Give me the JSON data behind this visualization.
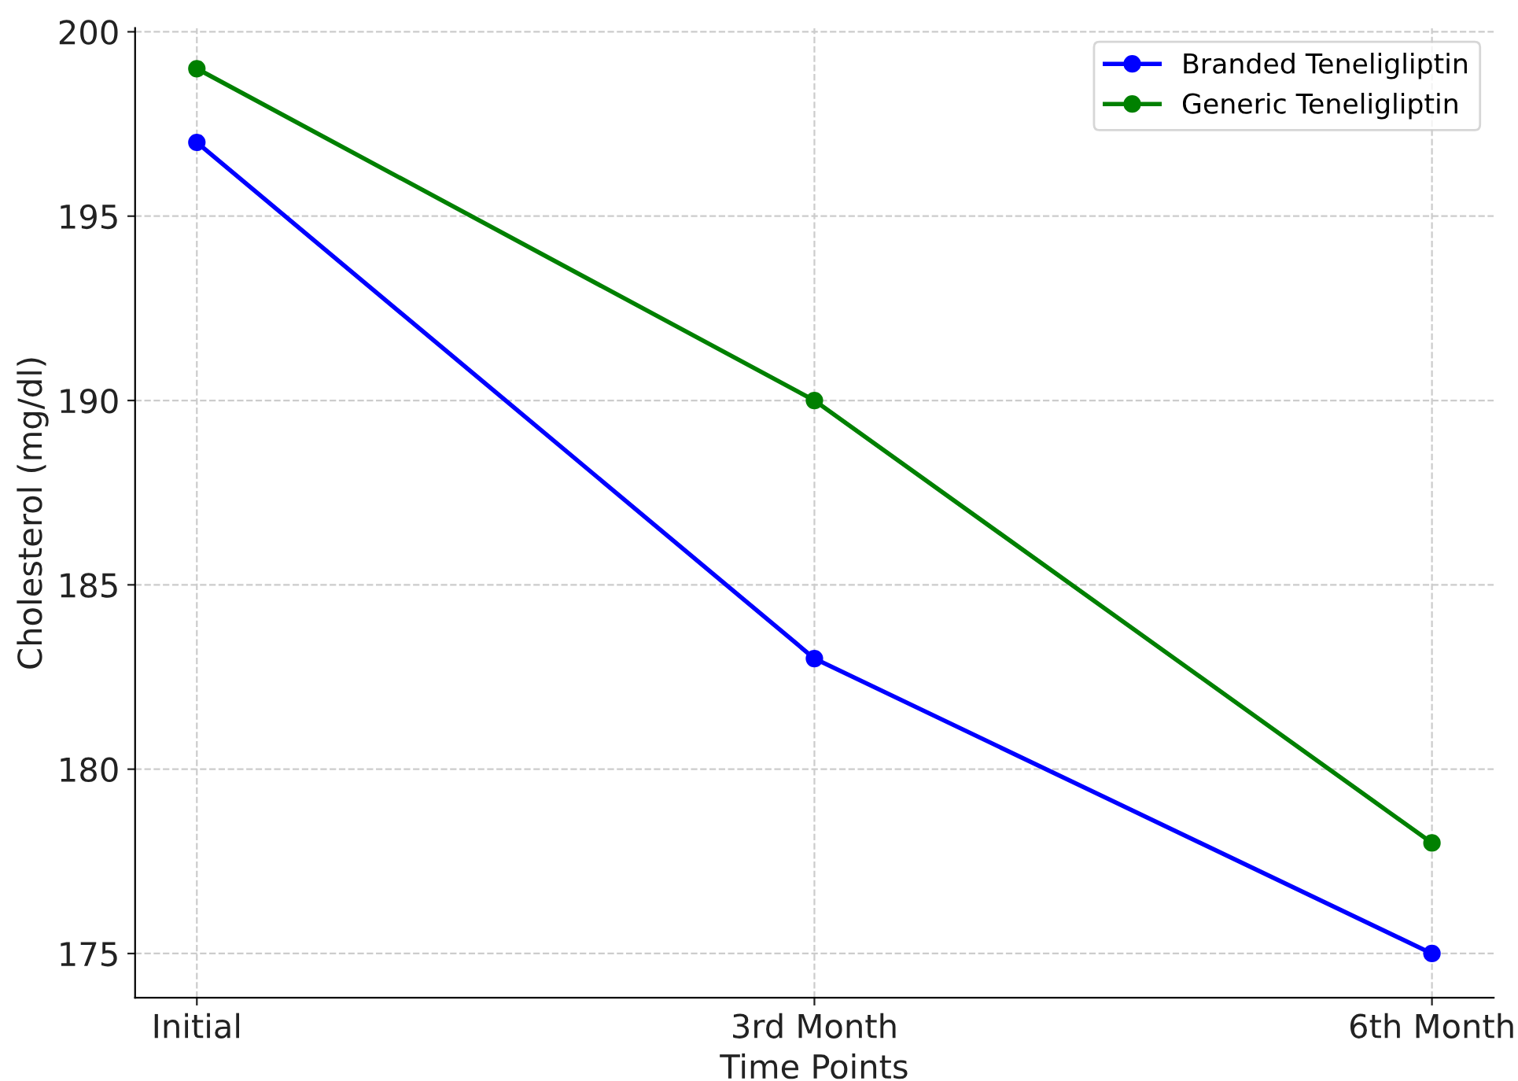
{
  "chart_data": {
    "type": "line",
    "xlabel": "Time Points",
    "ylabel": "Cholesterol (mg/dl)",
    "categories": [
      "Initial",
      "3rd Month",
      "6th Month"
    ],
    "series": [
      {
        "name": "Branded Teneligliptin",
        "color": "#0000ff",
        "values": [
          197,
          183,
          175
        ]
      },
      {
        "name": "Generic Teneligliptin",
        "color": "#008000",
        "values": [
          199,
          190,
          178
        ]
      }
    ],
    "ylim": [
      173.8,
      200.1
    ],
    "yticks": [
      175,
      180,
      185,
      190,
      195,
      200
    ],
    "grid": true,
    "legend": "top right",
    "marker": "circle",
    "line_style": "solid"
  }
}
